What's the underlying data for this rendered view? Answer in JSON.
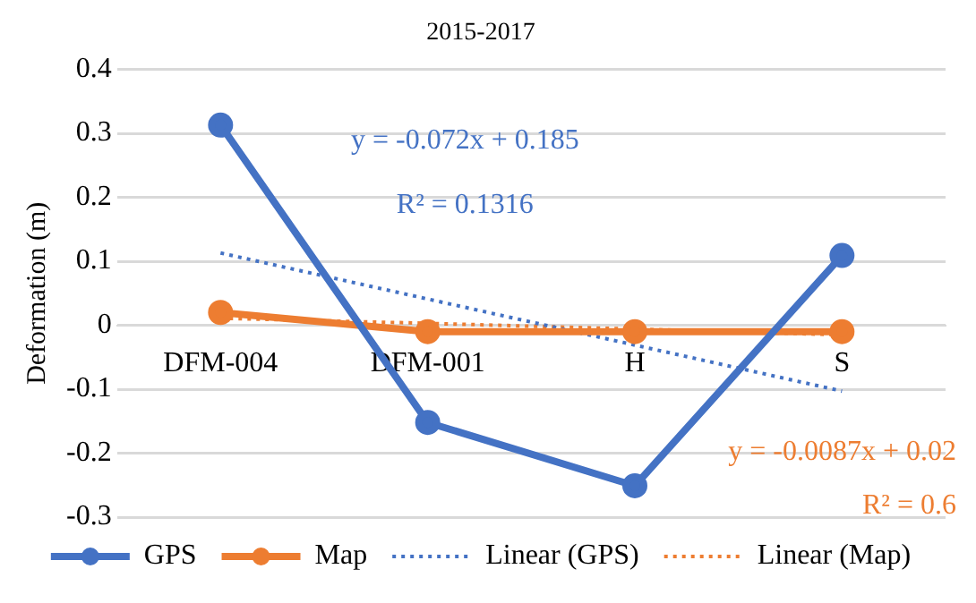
{
  "chart_data": {
    "type": "line",
    "title": "2015-2017",
    "ylabel": "Deformation (m)",
    "categories": [
      "DFM-004",
      "DFM-001",
      "H",
      "S"
    ],
    "series": [
      {
        "name": "GPS",
        "color": "#4472c4",
        "values": [
          0.313,
          -0.152,
          -0.251,
          0.109
        ],
        "marker": "circle",
        "line_style": "solid"
      },
      {
        "name": "Map",
        "color": "#ed7d31",
        "values": [
          0.02,
          -0.01,
          -0.01,
          -0.01
        ],
        "marker": "circle",
        "line_style": "solid"
      },
      {
        "name": "Linear (GPS)",
        "color": "#4472c4",
        "values": [
          0.113,
          0.041,
          -0.031,
          -0.103
        ],
        "marker": "none",
        "line_style": "dotted"
      },
      {
        "name": "Linear (Map)",
        "color": "#ed7d31",
        "values": [
          0.011,
          0.003,
          -0.006,
          -0.015
        ],
        "marker": "none",
        "line_style": "dotted"
      }
    ],
    "ylim": [
      -0.3,
      0.4
    ],
    "yticks": [
      -0.3,
      -0.2,
      -0.1,
      0,
      0.1,
      0.2,
      0.3,
      0.4
    ],
    "grid": "y",
    "legend": "bottom",
    "annotations": [
      "y = -0.072x + 0.185",
      "R² = 0.1316",
      "y = -0.0087x + 0.02",
      "R² = 0.6"
    ]
  }
}
